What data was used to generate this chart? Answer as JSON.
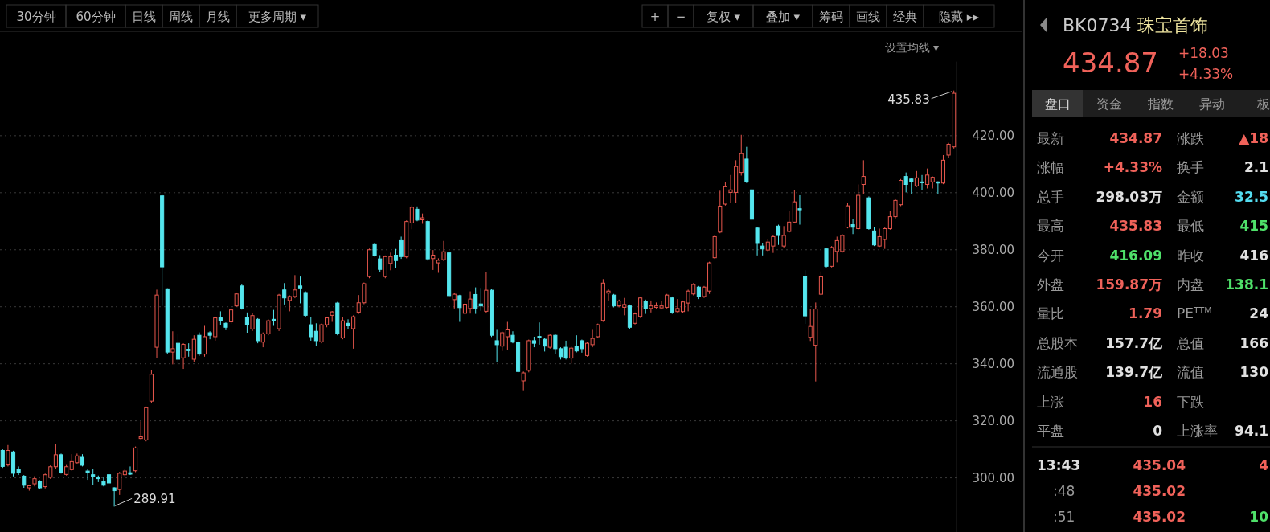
{
  "chart_data": [
    {
      "type": "candlestick",
      "subtitle": "设置均线 ▾",
      "annotations": [
        "30分钟",
        "60分钟",
        "日线",
        "周线",
        "月线",
        "更多周期 ▾",
        "+",
        "−",
        "复权 ▾",
        "叠加 ▾",
        "筹码",
        "画线",
        "经典",
        "隐藏 ▸▸",
        "435.83",
        "289.91"
      ],
      "colors": [
        "#54e6ee",
        "#e8574d",
        "#54e6ee",
        "#54e6ee",
        "#54e6ee",
        "#e8574d",
        "#e8574d",
        "#54e6ee",
        "#e8574d",
        "#e8574d",
        "#e8574d",
        "#54e6ee",
        "#e8574d",
        "#e8574d",
        "#e8574d",
        "#54e6ee",
        "#54e6ee",
        "#54e6ee",
        "#54e6ee",
        "#54e6ee",
        "#54e6ee",
        "#54e6ee",
        "#e8574d",
        "#e8574d",
        "#54e6ee",
        "#e8574d",
        "#e8574d",
        "#e8574d",
        "#e8574d",
        "#e8574d",
        "#54e6ee",
        "#54e6ee",
        "#e8574d",
        "#54e6ee",
        "#e8574d",
        "#54e6ee",
        "#e8574d",
        "#54e6ee",
        "#e8574d",
        "#54e6ee",
        "#e8574d",
        "#54e6ee",
        "#54e6ee",
        "#e8574d",
        "#e8574d",
        "#54e6ee",
        "#54e6ee",
        "#e8574d",
        "#54e6ee",
        "#e8574d",
        "#e8574d",
        "#54e6ee",
        "#e8574d",
        "#54e6ee",
        "#e8574d",
        "#e8574d",
        "#54e6ee",
        "#54e6ee",
        "#54e6ee",
        "#54e6ee",
        "#e8574d",
        "#e8574d",
        "#e8574d",
        "#54e6ee",
        "#e8574d",
        "#54e6ee",
        "#e8574d",
        "#e8574d",
        "#e8574d",
        "#e8574d",
        "#54e6ee",
        "#54e6ee",
        "#e8574d",
        "#e8574d",
        "#54e6ee",
        "#54e6ee",
        "#e8574d",
        "#e8574d",
        "#54e6ee",
        "#e8574d",
        "#54e6ee",
        "#e8574d",
        "#e8574d",
        "#e8574d",
        "#54e6ee",
        "#e8574d",
        "#54e6ee",
        "#e8574d",
        "#e8574d",
        "#54e6ee",
        "#54e6ee",
        "#e8574d",
        "#54e6ee",
        "#54e6ee",
        "#e8574d",
        "#e8574d",
        "#54e6ee",
        "#54e6ee",
        "#e8574d",
        "#e8574d",
        "#54e6ee",
        "#54e6ee",
        "#54e6ee",
        "#e8574d",
        "#54e6ee",
        "#54e6ee",
        "#54e6ee",
        "#e8574d",
        "#54e6ee",
        "#54e6ee",
        "#e8574d",
        "#e8574d",
        "#e8574d",
        "#e8574d",
        "#e8574d",
        "#54e6ee",
        "#e8574d",
        "#e8574d",
        "#54e6ee",
        "#e8574d",
        "#e8574d",
        "#54e6ee",
        "#e8574d",
        "#e8574d",
        "#e8574d",
        "#e8574d",
        "#54e6ee",
        "#e8574d",
        "#e8574d",
        "#e8574d",
        "#e8574d",
        "#54e6ee",
        "#e8574d",
        "#e8574d",
        "#e8574d",
        "#e8574d",
        "#e8574d",
        "#e8574d",
        "#e8574d",
        "#e8574d",
        "#54e6ee",
        "#54e6ee",
        "#54e6ee",
        "#54e6ee",
        "#e8574d",
        "#e8574d",
        "#54e6ee",
        "#e8574d",
        "#e8574d",
        "#e8574d",
        "#54e6ee",
        "#54e6ee",
        "#e8574d",
        "#e8574d",
        "#e8574d",
        "#54e6ee",
        "#e8574d",
        "#e8574d",
        "#e8574d",
        "#e8574d",
        "#54e6ee",
        "#e8574d",
        "#e8574d",
        "#54e6ee",
        "#54e6ee",
        "#e8574d",
        "#e8574d",
        "#e8574d",
        "#e8574d",
        "#e8574d",
        "#54e6ee",
        "#54e6ee",
        "#e8574d",
        "#54e6ee",
        "#e8574d",
        "#e8574d",
        "#54e6ee",
        "#e8574d",
        "#e8574d",
        "#e8574d"
      ],
      "ylim": [
        281,
        446
      ],
      "yticks": [
        {
          "value": 300,
          "label": "300.00"
        },
        {
          "value": 320,
          "label": "320.00"
        },
        {
          "value": 340,
          "label": "340.00"
        },
        {
          "value": 360,
          "label": "360.00"
        },
        {
          "value": 380,
          "label": "380.00"
        },
        {
          "value": 400,
          "label": "400.00"
        },
        {
          "value": 420,
          "label": "420.00"
        }
      ],
      "grid": "y",
      "categories": [
        null,
        null,
        null,
        null,
        null,
        null,
        null,
        null,
        null,
        null,
        null,
        null,
        null,
        null,
        null,
        null,
        null,
        null,
        null,
        null,
        null,
        null,
        null,
        null,
        null,
        null,
        null,
        null,
        null,
        null,
        null,
        null,
        null,
        null,
        null,
        null,
        null,
        null,
        null,
        null,
        null,
        null,
        null,
        null,
        null,
        null,
        null,
        null,
        null,
        null,
        null,
        null,
        null,
        null,
        null,
        null,
        null,
        null,
        null,
        null,
        null,
        null,
        null,
        null,
        null,
        null,
        null,
        null,
        null,
        null,
        null,
        null,
        null,
        null,
        null,
        null,
        null,
        null,
        null,
        null,
        null,
        null,
        null,
        null,
        null,
        null,
        null,
        null,
        null,
        null,
        null,
        null,
        null,
        null,
        null,
        null,
        null,
        null,
        null,
        null,
        null,
        null,
        null,
        null,
        null,
        null,
        null,
        null,
        null,
        null,
        null,
        null,
        null,
        null,
        null,
        null,
        null,
        null,
        null,
        null,
        null,
        null,
        null,
        null,
        null,
        null,
        null,
        null,
        null,
        null,
        null,
        null,
        null,
        null,
        null,
        null,
        null,
        null,
        null,
        null,
        null,
        null,
        null,
        null,
        null,
        null,
        null,
        null,
        null,
        null,
        null,
        null,
        null,
        null,
        null,
        null,
        null,
        null,
        null,
        null,
        null,
        null,
        null,
        null,
        null,
        null,
        null,
        null,
        null,
        null,
        null,
        null,
        null,
        null,
        null,
        null,
        null,
        null,
        null,
        null
      ],
      "ohlc": [
        [
          309.6,
          310,
          303.5,
          304.0
        ],
        [
          304.5,
          311.5,
          304,
          309.6
        ],
        [
          309.1,
          309.5,
          300.5,
          301.6
        ],
        [
          302.9,
          304,
          301,
          302.0
        ],
        [
          300.6,
          301,
          296.5,
          297.4
        ],
        [
          296.5,
          297.5,
          295.5,
          297.2
        ],
        [
          297.9,
          300.6,
          297,
          299.7
        ],
        [
          298.8,
          299.2,
          296,
          296.5
        ],
        [
          296.9,
          301.5,
          296.3,
          301.1
        ],
        [
          300.2,
          304.4,
          299.6,
          303.9
        ],
        [
          303.9,
          311.9,
          303,
          308.1
        ],
        [
          308.1,
          308.5,
          301.5,
          302.0
        ],
        [
          301.2,
          304.5,
          300.8,
          303.9
        ],
        [
          302.9,
          308.3,
          302.5,
          305.7
        ],
        [
          305.3,
          308.5,
          305,
          307.7
        ],
        [
          307.2,
          308.3,
          304,
          304.4
        ],
        [
          302.4,
          303,
          299.3,
          301.8
        ],
        [
          301.1,
          303,
          297.4,
          300.5
        ],
        [
          300,
          300.8,
          298.5,
          299.8
        ],
        [
          298.7,
          300.2,
          297,
          297.4
        ],
        [
          301.1,
          302.5,
          297.8,
          298.2
        ],
        [
          296.5,
          296.7,
          289.91,
          295.5
        ],
        [
          295.9,
          302.1,
          294,
          301.6
        ],
        [
          301.1,
          303,
          300.5,
          302.4
        ],
        [
          301.8,
          304,
          301,
          301.3
        ],
        [
          302.5,
          311,
          302,
          310.5
        ],
        [
          313.8,
          319.8,
          313.5,
          314.4
        ],
        [
          313.3,
          325,
          312.8,
          324.6
        ],
        [
          326.9,
          337.7,
          326.3,
          336.3
        ],
        [
          345.8,
          366,
          342,
          364.1
        ],
        [
          398.9,
          399.2,
          360.3,
          374.0
        ],
        [
          366.3,
          366.5,
          343.5,
          344.1
        ],
        [
          344.1,
          351.4,
          339.8,
          345.3
        ],
        [
          347.2,
          350.5,
          339.8,
          341.6
        ],
        [
          342.1,
          347.2,
          338.2,
          346.8
        ],
        [
          345.1,
          347.2,
          342.5,
          344.6
        ],
        [
          341.6,
          350,
          340.5,
          348.6
        ],
        [
          350,
          351,
          342.8,
          343.4
        ],
        [
          343.4,
          353.3,
          342.5,
          349.5
        ],
        [
          350.9,
          351.4,
          348.6,
          350
        ],
        [
          349.5,
          356.5,
          348.1,
          356.1
        ],
        [
          356.1,
          358.4,
          353.7,
          355.1
        ],
        [
          354.2,
          354.5,
          351.8,
          352.8
        ],
        [
          354.7,
          359.4,
          354,
          358.9
        ],
        [
          360.3,
          365,
          360,
          364.5
        ],
        [
          367.3,
          367.8,
          359,
          359.4
        ],
        [
          356.1,
          358,
          350.9,
          353.7
        ],
        [
          352.2,
          357.9,
          351.5,
          356.9
        ],
        [
          355.6,
          356,
          347.2,
          348.1
        ],
        [
          347.6,
          351,
          345.8,
          350.5
        ],
        [
          350.5,
          355.6,
          350,
          355.1
        ],
        [
          355.6,
          358.9,
          353.3,
          355
        ],
        [
          352.3,
          364.5,
          351.5,
          364.1
        ],
        [
          365.9,
          368.3,
          360.8,
          363.1
        ],
        [
          362.2,
          364,
          358.4,
          363.6
        ],
        [
          363.6,
          371.1,
          363,
          365.9
        ],
        [
          367.3,
          370.6,
          361.2,
          366.6
        ],
        [
          365,
          365.4,
          356.5,
          357
        ],
        [
          353.7,
          356.3,
          348.1,
          349.5
        ],
        [
          351.4,
          354.2,
          346.2,
          348.1
        ],
        [
          347.7,
          354.1,
          347.2,
          353.7
        ],
        [
          353.7,
          356.5,
          352.8,
          356.1
        ],
        [
          357,
          358.5,
          354.7,
          358.2
        ],
        [
          361.3,
          361.7,
          350,
          350.5
        ],
        [
          349.1,
          356.5,
          348.6,
          355.1
        ],
        [
          354.2,
          355.6,
          352.3,
          353.3
        ],
        [
          352.3,
          357,
          345.3,
          356.5
        ],
        [
          358.1,
          364.1,
          357.5,
          361.4
        ],
        [
          361.4,
          368.5,
          360.9,
          368.1
        ],
        [
          370.6,
          380.4,
          370,
          380
        ],
        [
          381.8,
          382.3,
          377.6,
          378.1
        ],
        [
          376.8,
          378.1,
          372.2,
          373.1
        ],
        [
          370.6,
          378,
          370,
          377.6
        ],
        [
          375.2,
          379,
          372.8,
          377.6
        ],
        [
          378.1,
          380.3,
          373.6,
          376.2
        ],
        [
          383.2,
          384.6,
          376.8,
          377.6
        ],
        [
          377.5,
          390.3,
          377,
          389.9
        ],
        [
          389.4,
          395.6,
          387.2,
          394.9
        ],
        [
          394.2,
          395.2,
          390,
          390.4
        ],
        [
          390.5,
          392.7,
          389.1,
          391.2
        ],
        [
          389.9,
          390.3,
          376.2,
          376.8
        ],
        [
          376.9,
          379.9,
          372.9,
          378.1
        ],
        [
          375.4,
          377,
          371.9,
          376.3
        ],
        [
          376.5,
          383.1,
          376,
          379.3
        ],
        [
          378.9,
          379.3,
          363.3,
          363.9
        ],
        [
          362.5,
          365,
          359.4,
          364.4
        ],
        [
          363.9,
          364.2,
          354.7,
          359.7
        ],
        [
          357.7,
          361.4,
          357.2,
          360.9
        ],
        [
          359.4,
          365.4,
          357.6,
          362.7
        ],
        [
          364.3,
          366.8,
          357.5,
          359.4
        ],
        [
          361,
          366.6,
          358.6,
          360.3
        ],
        [
          358.4,
          372.1,
          357.8,
          365.8
        ],
        [
          365.8,
          366.2,
          349.4,
          350
        ],
        [
          348.1,
          351.9,
          340.6,
          346.7
        ],
        [
          346.2,
          351.3,
          344.5,
          350.9
        ],
        [
          349.5,
          354.7,
          344.8,
          351.9
        ],
        [
          350,
          351.4,
          347.2,
          347.6
        ],
        [
          347.6,
          348,
          336.9,
          337.3
        ],
        [
          334,
          337.3,
          330.7,
          336.8
        ],
        [
          337.7,
          348.5,
          337,
          348.1
        ],
        [
          348.1,
          349.5,
          345.8,
          347.2
        ],
        [
          349.6,
          354.5,
          346.7,
          349.3
        ],
        [
          348.6,
          349,
          344.3,
          346.2
        ],
        [
          345.8,
          350.5,
          345.3,
          350
        ],
        [
          350,
          350.4,
          343.4,
          345.3
        ],
        [
          345.3,
          345.8,
          341.5,
          342.5
        ],
        [
          345.8,
          348.1,
          341.5,
          342
        ],
        [
          342,
          346,
          340.1,
          345.5
        ],
        [
          346.2,
          350,
          344,
          344.5
        ],
        [
          348.1,
          348.5,
          343.9,
          345.3
        ],
        [
          342.9,
          347.6,
          342.5,
          347.2
        ],
        [
          346.7,
          351.9,
          345.8,
          348.9
        ],
        [
          349.5,
          354.1,
          349,
          353.7
        ],
        [
          355.2,
          369.7,
          354.7,
          368.3
        ],
        [
          364.8,
          366.4,
          362.2,
          365.5
        ],
        [
          364.1,
          364.5,
          359.8,
          360.3
        ],
        [
          360.3,
          362.5,
          359.8,
          362
        ],
        [
          359.8,
          363.1,
          357,
          360.8
        ],
        [
          360.3,
          360.8,
          352.3,
          352.8
        ],
        [
          354.2,
          358,
          353.8,
          357.5
        ],
        [
          356.6,
          363.5,
          356.1,
          363.1
        ],
        [
          362,
          362.5,
          357.5,
          359.4
        ],
        [
          359.4,
          362.2,
          358,
          360.3
        ],
        [
          359.8,
          361.5,
          359.4,
          360.3
        ],
        [
          359.6,
          362,
          359.4,
          360.3
        ],
        [
          359.8,
          364.5,
          359.4,
          364.1
        ],
        [
          363.1,
          363.6,
          357.5,
          358
        ],
        [
          358.3,
          362.7,
          358,
          359.4
        ],
        [
          358.3,
          362.2,
          357.8,
          361.7
        ],
        [
          361.3,
          366,
          358.4,
          365.5
        ],
        [
          364.5,
          368.3,
          364,
          367.8
        ],
        [
          366.9,
          367.3,
          362.7,
          363.6
        ],
        [
          363.6,
          367.3,
          363.1,
          366.9
        ],
        [
          365.5,
          375.8,
          364.5,
          375.4
        ],
        [
          377.2,
          385,
          376.8,
          384.6
        ],
        [
          386.2,
          400.7,
          385.8,
          395.3
        ],
        [
          396,
          403.6,
          395.5,
          402.1
        ],
        [
          400.1,
          406.2,
          396.3,
          401
        ],
        [
          400.1,
          411.4,
          396.3,
          409.2
        ],
        [
          407.1,
          420.3,
          406,
          413.7
        ],
        [
          411.8,
          416.1,
          403.4,
          403.8
        ],
        [
          401,
          401.5,
          390.2,
          390.7
        ],
        [
          387.6,
          388,
          378,
          382.2
        ],
        [
          381.3,
          382.2,
          378,
          380.3
        ],
        [
          379.9,
          383.6,
          379.4,
          382.7
        ],
        [
          381.3,
          385,
          378.9,
          384.6
        ],
        [
          388.3,
          388.8,
          381.7,
          385
        ],
        [
          381.3,
          388.3,
          380.8,
          385
        ],
        [
          386.4,
          393.5,
          386,
          389.7
        ],
        [
          389.7,
          401,
          389.3,
          396.8
        ],
        [
          394.4,
          399.1,
          388.8,
          394
        ],
        [
          370.5,
          372.8,
          354,
          356.8
        ],
        [
          349.3,
          359.2,
          348,
          353.1
        ],
        [
          346.5,
          361.5,
          333.8,
          359.2
        ],
        [
          364.4,
          372.4,
          364,
          370.5
        ],
        [
          380.3,
          380.7,
          373.8,
          374.2
        ],
        [
          374.2,
          381.3,
          373.8,
          380.8
        ],
        [
          379.4,
          384.6,
          375.6,
          383.2
        ],
        [
          379.4,
          385.5,
          379,
          385
        ],
        [
          387.9,
          396.5,
          387.5,
          395.4
        ],
        [
          388.8,
          390.7,
          385.5,
          387.9
        ],
        [
          387.4,
          402.9,
          387,
          399.1
        ],
        [
          402.9,
          411.4,
          399.6,
          405.7
        ],
        [
          398.2,
          398.7,
          387,
          387.4
        ],
        [
          386.6,
          387.9,
          381.3,
          381.7
        ],
        [
          381.3,
          387.4,
          381,
          384.6
        ],
        [
          383.6,
          387.9,
          380.3,
          387.4
        ],
        [
          387.4,
          393.5,
          387,
          391.6
        ],
        [
          391.6,
          397.7,
          391,
          397.3
        ],
        [
          395.8,
          404.8,
          395.3,
          404.3
        ],
        [
          405.7,
          407.1,
          400.1,
          402.9
        ],
        [
          404.8,
          405.2,
          399.6,
          403.8
        ],
        [
          402.4,
          407.6,
          402,
          405.2
        ],
        [
          403.8,
          406.2,
          401,
          403.5
        ],
        [
          402.9,
          408.5,
          401.5,
          406.2
        ],
        [
          403.8,
          405.7,
          401.5,
          405.4
        ],
        [
          403.8,
          404,
          399.6,
          403.4
        ],
        [
          403.4,
          413.2,
          403,
          411.4
        ],
        [
          413.2,
          417.5,
          412.3,
          417
        ],
        [
          416.09,
          435.83,
          415.5,
          434.87
        ]
      ]
    },
    {
      "type": "other",
      "title": "BK0734 珠宝首饰",
      "annotations": [
        "434.87",
        "+18.03",
        "+4.33%",
        "盘口",
        "资金",
        "指数",
        "异动",
        "板",
        "最新",
        "434.87",
        "涨跌",
        "▲18",
        "涨幅",
        "+4.33%",
        "换手",
        "2.1",
        "总手",
        "298.03万",
        "金额",
        "32.5",
        "最高",
        "435.83",
        "最低",
        "415",
        "今开",
        "416.09",
        "昨收",
        "416",
        "外盘",
        "159.87万",
        "内盘",
        "138.1",
        "量比",
        "1.79",
        "PE$^{TTM}$",
        "24",
        "总股本",
        "157.7亿",
        "总值",
        "166",
        "流通股",
        "139.7亿",
        "流值",
        "130",
        "上涨",
        "16",
        "下跌",
        null,
        "平盘",
        "0",
        "上涨率",
        "94.1",
        "13:43",
        "435.04",
        "4",
        ":48",
        "435.02",
        null,
        ":51",
        "435.02",
        "10"
      ]
    }
  ]
}
